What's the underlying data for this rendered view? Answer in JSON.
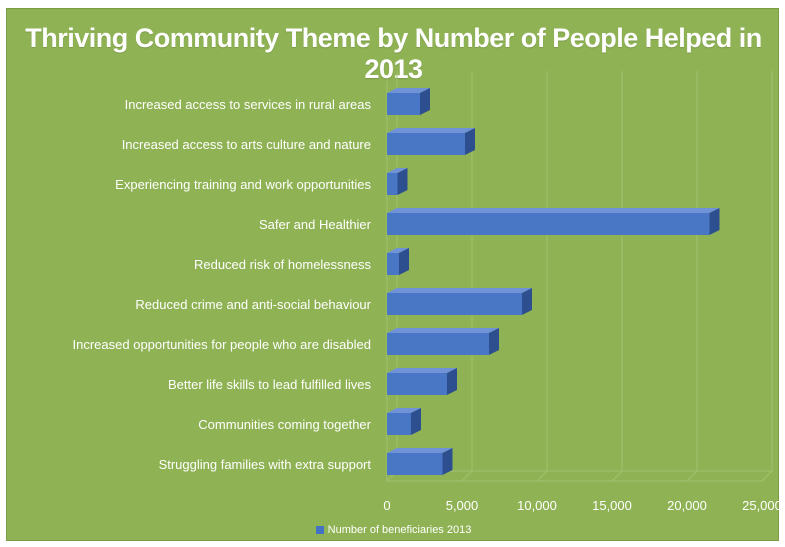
{
  "colors": {
    "background": "#8fb354",
    "bar_front": "#4a76c6",
    "bar_top": "#6f93d6",
    "bar_side": "#2e4f8f",
    "grid": "#a3c070",
    "text": "#ffffff"
  },
  "chart_data": {
    "type": "bar",
    "orientation": "horizontal",
    "style": "3d",
    "title": "Thriving Community Theme by Number of People Helped in 2013",
    "categories": [
      "Increased access to services in rural areas",
      "Increased access to arts culture and nature",
      "Experiencing training and work opportunities",
      "Safer and Healthier",
      "Reduced risk of homelessness",
      "Reduced crime and anti-social behaviour",
      "Increased opportunities for people who are disabled",
      "Better life skills to lead fulfilled lives",
      "Communities coming together",
      "Struggling families with extra support"
    ],
    "series": [
      {
        "name": "Number of beneficiaries 2013",
        "values": [
          2200,
          5200,
          700,
          21500,
          800,
          9000,
          6800,
          4000,
          1600,
          3700
        ]
      }
    ],
    "xlim": [
      0,
      25000
    ],
    "xticks": [
      0,
      5000,
      10000,
      15000,
      20000,
      25000
    ],
    "xtick_labels": [
      "0",
      "5,000",
      "10,000",
      "15,000",
      "20,000",
      "25,000"
    ],
    "grid": "vertical",
    "legend_position": "bottom"
  }
}
